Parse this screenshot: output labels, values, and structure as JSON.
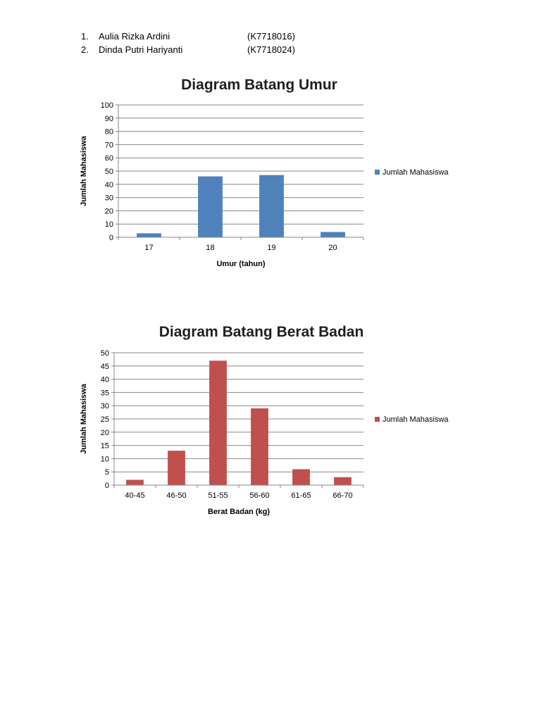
{
  "authors": [
    {
      "no": "1.",
      "name": "Aulia Rizka Ardini",
      "nim": "(K7718016)"
    },
    {
      "no": "2.",
      "name": "Dinda Putri Hariyanti",
      "nim": "(K7718024)"
    }
  ],
  "chart_data": [
    {
      "type": "bar",
      "title": "Diagram Batang Umur",
      "xlabel": "Umur (tahun)",
      "ylabel": "Jumlah Mahasiswa",
      "categories": [
        "17",
        "18",
        "19",
        "20"
      ],
      "series": [
        {
          "name": "Jumlah Mahasiswa",
          "values": [
            3,
            46,
            47,
            4
          ],
          "color": "#4f81bd"
        }
      ],
      "ylim": [
        0,
        100
      ],
      "yticks": [
        0,
        10,
        20,
        30,
        40,
        50,
        60,
        70,
        80,
        90,
        100
      ],
      "grid": true,
      "legend": "right"
    },
    {
      "type": "bar",
      "title": "Diagram Batang Berat Badan",
      "xlabel": "Berat Badan (kg)",
      "ylabel": "Jumlah Mahasiswa",
      "categories": [
        "40-45",
        "46-50",
        "51-55",
        "56-60",
        "61-65",
        "66-70"
      ],
      "series": [
        {
          "name": "Jumlah Mahasiswa",
          "values": [
            2,
            13,
            47,
            29,
            6,
            3
          ],
          "color": "#c0504d"
        }
      ],
      "ylim": [
        0,
        50
      ],
      "yticks": [
        0,
        5,
        10,
        15,
        20,
        25,
        30,
        35,
        40,
        45,
        50
      ],
      "grid": true,
      "legend": "right"
    }
  ]
}
